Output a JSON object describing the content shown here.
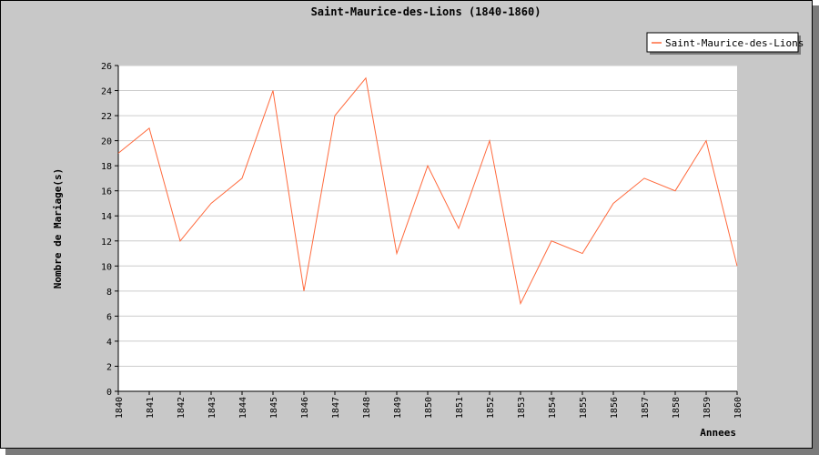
{
  "chart_data": {
    "type": "line",
    "title": "Saint-Maurice-des-Lions (1840-1860)",
    "xlabel": "Annees",
    "ylabel": "Nombre de Mariage(s)",
    "categories": [
      "1840",
      "1841",
      "1842",
      "1843",
      "1844",
      "1845",
      "1846",
      "1847",
      "1848",
      "1849",
      "1850",
      "1851",
      "1852",
      "1853",
      "1854",
      "1855",
      "1856",
      "1857",
      "1858",
      "1859",
      "1860"
    ],
    "series": [
      {
        "name": "Saint-Maurice-des-Lions",
        "values": [
          19,
          21,
          12,
          15,
          17,
          24,
          8,
          22,
          25,
          11,
          18,
          13,
          20,
          7,
          12,
          11,
          15,
          17,
          16,
          20,
          10
        ]
      }
    ],
    "ylim": [
      0,
      26
    ],
    "yticks": [
      "0",
      "2",
      "4",
      "6",
      "8",
      "10",
      "12",
      "14",
      "16",
      "18",
      "20",
      "22",
      "24",
      "26"
    ],
    "grid": true,
    "legend": "top-right",
    "colors": {
      "line": "#ff6a3d",
      "plot_bg": "#ffffff",
      "frame_bg": "#c8c8c8",
      "grid": "#cccccc"
    }
  }
}
